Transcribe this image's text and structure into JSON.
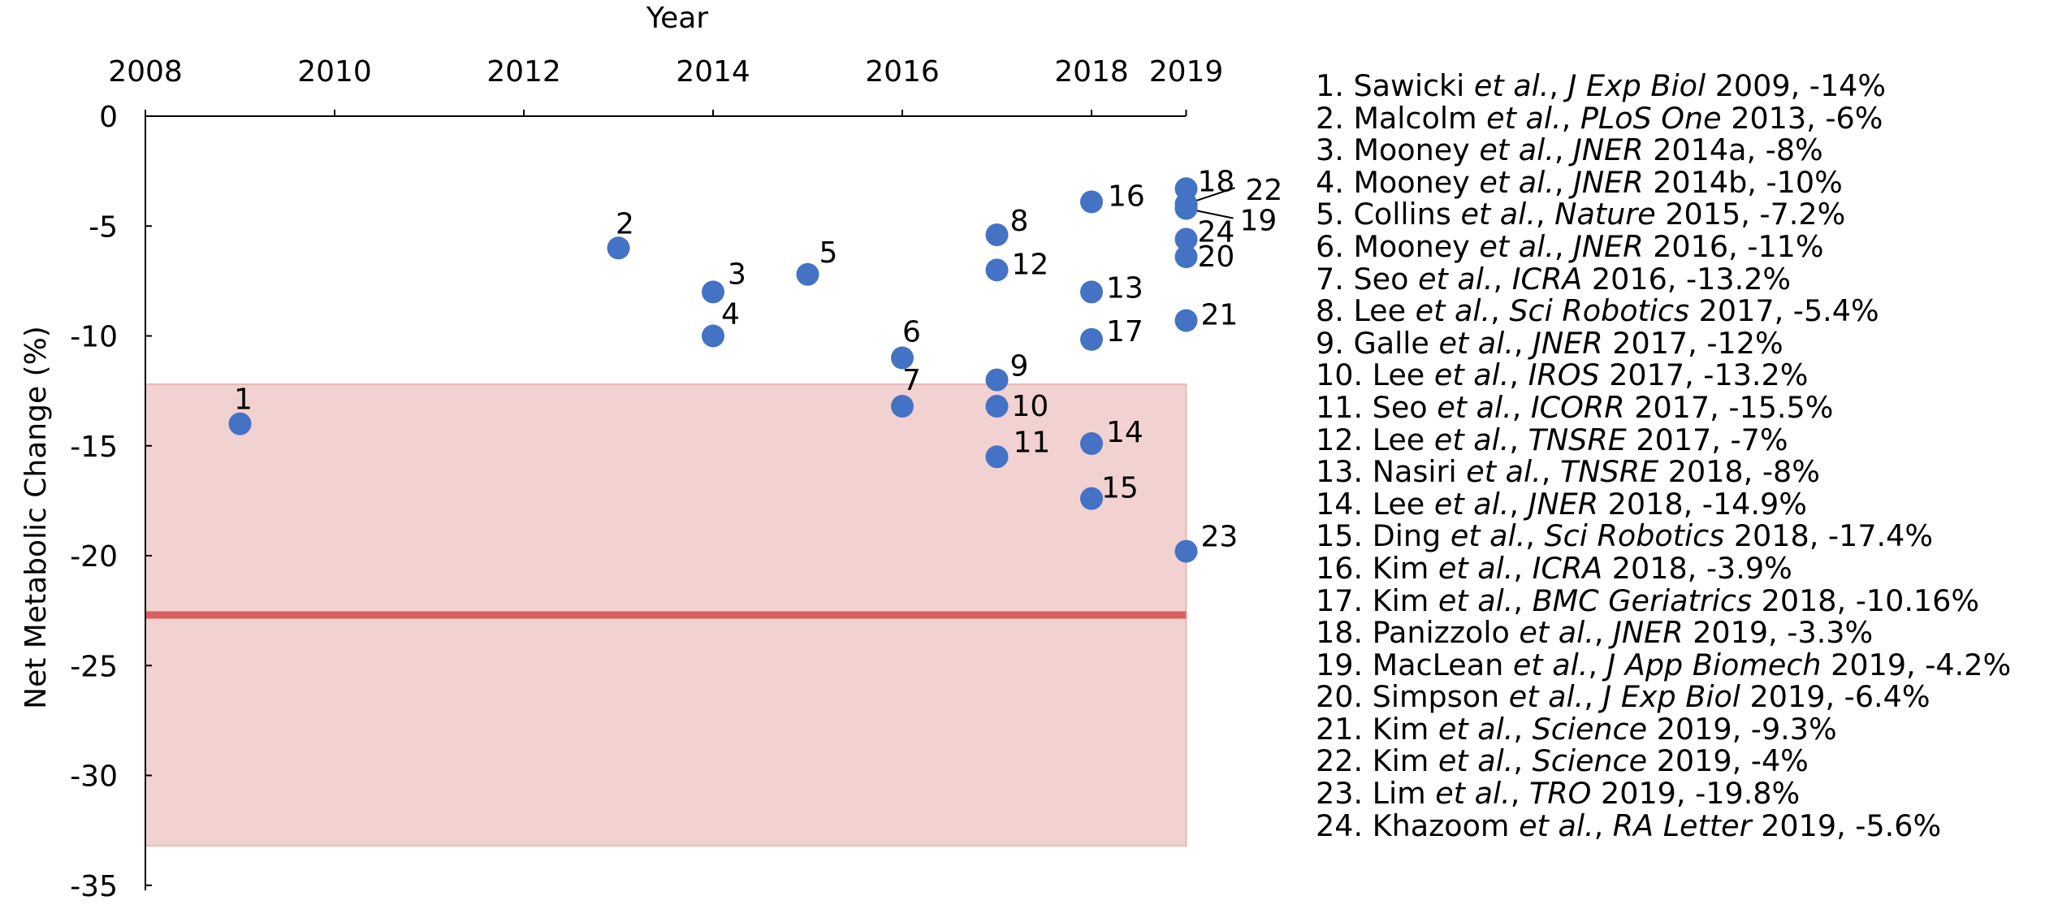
{
  "chart_data": {
    "type": "scatter",
    "xlabel": "Year",
    "ylabel": "Net Metabolic Change (%)",
    "x_axis_position": "top",
    "xlim": [
      2008,
      2019.5
    ],
    "ylim": [
      -35,
      0
    ],
    "x_ticks": [
      "2008",
      "2010",
      "2012",
      "2014",
      "2016",
      "2018",
      "2019"
    ],
    "y_ticks": [
      "0",
      "-5",
      "-10",
      "-15",
      "-20",
      "-25",
      "-30",
      "-35"
    ],
    "grid": false,
    "series_color": "#4472C4",
    "shaded_band": {
      "y_from": -12.2,
      "y_to": -33.2,
      "x_from": 2008,
      "x_to": 2019,
      "color": "#F2D1D1"
    },
    "reference_line": {
      "y": -22.7,
      "color": "#D9605F"
    },
    "points": [
      {
        "label": "1",
        "x": 2009,
        "y": -14
      },
      {
        "label": "2",
        "x": 2013,
        "y": -6
      },
      {
        "label": "3",
        "x": 2014,
        "y": -8
      },
      {
        "label": "4",
        "x": 2014,
        "y": -10
      },
      {
        "label": "5",
        "x": 2015,
        "y": -7.2
      },
      {
        "label": "6",
        "x": 2016,
        "y": -11
      },
      {
        "label": "7",
        "x": 2016,
        "y": -13.2
      },
      {
        "label": "8",
        "x": 2017,
        "y": -5.4
      },
      {
        "label": "9",
        "x": 2017,
        "y": -12
      },
      {
        "label": "10",
        "x": 2017,
        "y": -13.2
      },
      {
        "label": "11",
        "x": 2017,
        "y": -15.5
      },
      {
        "label": "12",
        "x": 2017,
        "y": -7
      },
      {
        "label": "13",
        "x": 2018,
        "y": -8
      },
      {
        "label": "14",
        "x": 2018,
        "y": -14.9
      },
      {
        "label": "15",
        "x": 2018,
        "y": -17.4
      },
      {
        "label": "16",
        "x": 2018,
        "y": -3.9
      },
      {
        "label": "17",
        "x": 2018,
        "y": -10.16
      },
      {
        "label": "18",
        "x": 2019,
        "y": -3.3
      },
      {
        "label": "19",
        "x": 2019,
        "y": -4.2
      },
      {
        "label": "20",
        "x": 2019,
        "y": -6.4
      },
      {
        "label": "21",
        "x": 2019,
        "y": -9.3
      },
      {
        "label": "22",
        "x": 2019,
        "y": -4
      },
      {
        "label": "23",
        "x": 2019,
        "y": -19.8
      },
      {
        "label": "24",
        "x": 2019,
        "y": -5.6
      }
    ],
    "legend": [
      {
        "n": "1.",
        "author": "Sawicki",
        "etal": "et al.",
        "journal": "J Exp Biol",
        "rest": "2009, -14%"
      },
      {
        "n": "2.",
        "author": "Malcolm",
        "etal": "et al.",
        "journal": "PLoS One",
        "rest": "2013, -6%"
      },
      {
        "n": "3.",
        "author": "Mooney",
        "etal": "et al.",
        "journal": "JNER",
        "rest": "2014a, -8%"
      },
      {
        "n": "4.",
        "author": "Mooney",
        "etal": "et al.",
        "journal": "JNER",
        "rest": "2014b, -10%"
      },
      {
        "n": "5.",
        "author": "Collins",
        "etal": "et al.",
        "journal": "Nature",
        "rest": "2015, -7.2%"
      },
      {
        "n": "6.",
        "author": "Mooney",
        "etal": "et al.",
        "journal": "JNER",
        "rest": "2016, -11%"
      },
      {
        "n": "7.",
        "author": "Seo",
        "etal": "et al.",
        "journal": "ICRA",
        "rest": "2016, -13.2%"
      },
      {
        "n": "8.",
        "author": "Lee",
        "etal": "et al.",
        "journal": "Sci Robotics",
        "rest": "2017, -5.4%"
      },
      {
        "n": "9.",
        "author": "Galle",
        "etal": "et al.",
        "journal": "JNER",
        "rest": "2017, -12%"
      },
      {
        "n": "10.",
        "author": "Lee",
        "etal": "et al.",
        "journal": "IROS",
        "rest": "2017, -13.2%"
      },
      {
        "n": "11.",
        "author": "Seo",
        "etal": "et al.",
        "journal": "ICORR",
        "rest": "2017, -15.5%"
      },
      {
        "n": "12.",
        "author": "Lee",
        "etal": "et al.",
        "journal": "TNSRE",
        "rest": "2017, -7%"
      },
      {
        "n": "13.",
        "author": "Nasiri",
        "etal": "et al.",
        "journal": "TNSRE",
        "rest": "2018, -8%"
      },
      {
        "n": "14.",
        "author": "Lee",
        "etal": "et al.",
        "journal": "JNER",
        "rest": "2018, -14.9%"
      },
      {
        "n": "15.",
        "author": "Ding",
        "etal": "et al.",
        "journal": "Sci Robotics",
        "rest": "2018, -17.4%"
      },
      {
        "n": "16.",
        "author": "Kim",
        "etal": "et al.",
        "journal": "ICRA",
        "rest": "2018, -3.9%"
      },
      {
        "n": "17.",
        "author": "Kim",
        "etal": "et al.",
        "journal": "BMC Geriatrics",
        "rest": "2018, -10.16%"
      },
      {
        "n": "18.",
        "author": "Panizzolo",
        "etal": "et al.",
        "journal": "JNER",
        "rest": "2019, -3.3%"
      },
      {
        "n": "19.",
        "author": "MacLean",
        "etal": "et al.",
        "journal": "J App Biomech",
        "rest": "2019, -4.2%"
      },
      {
        "n": "20.",
        "author": "Simpson",
        "etal": "et al.",
        "journal": "J Exp Biol",
        "rest": "2019, -6.4%"
      },
      {
        "n": "21.",
        "author": "Kim",
        "etal": "et al.",
        "journal": "Science",
        "rest": "2019, -9.3%"
      },
      {
        "n": "22.",
        "author": "Kim",
        "etal": "et al.",
        "journal": "Science",
        "rest": "2019, -4%"
      },
      {
        "n": "23.",
        "author": "Lim",
        "etal": "et al.",
        "journal": "TRO",
        "rest": "2019, -19.8%"
      },
      {
        "n": "24.",
        "author": "Khazoom",
        "etal": "et al.",
        "journal": "RA Letter",
        "rest": "2019, -5.6%"
      }
    ]
  }
}
